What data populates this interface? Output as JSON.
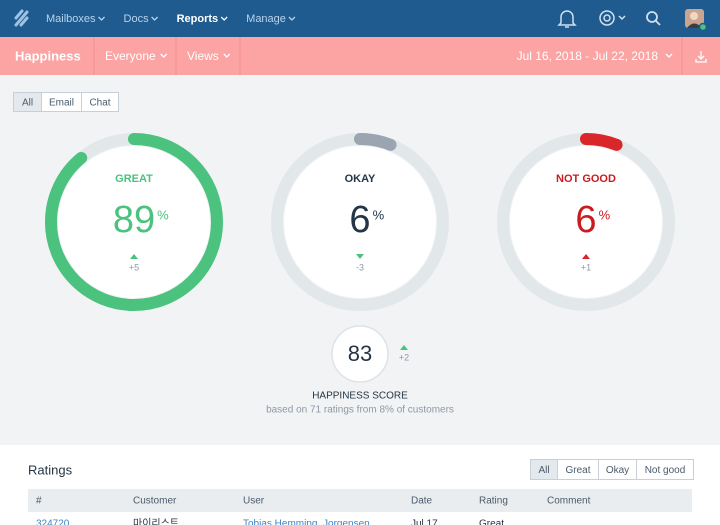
{
  "nav": {
    "items": [
      "Mailboxes",
      "Docs",
      "Reports",
      "Manage"
    ],
    "active": 2
  },
  "subheader": {
    "title": "Happiness",
    "filters": [
      "Everyone",
      "Views"
    ],
    "date_range": "Jul 16, 2018 - Jul 22, 2018"
  },
  "tabs": [
    "All",
    "Email",
    "Chat"
  ],
  "gauges": [
    {
      "label": "GREAT",
      "value": 89,
      "unit": "%",
      "change": "+5",
      "color": "#4bc27d",
      "text_color": "#4bc27d",
      "change_color": "#4bc27d"
    },
    {
      "label": "OKAY",
      "value": 6,
      "unit": "%",
      "change": "-3",
      "color": "#9aa5b1",
      "text_color": "#253545",
      "change_color": "#4bc27d"
    },
    {
      "label": "NOT GOOD",
      "value": 6,
      "unit": "%",
      "change": "+1",
      "color": "#d9262b",
      "text_color": "#c91c20",
      "change_color": "#d9262b"
    }
  ],
  "score": {
    "value": 83,
    "change": "+2",
    "label": "HAPPINESS SCORE",
    "note": "based on 71 ratings from 8% of customers"
  },
  "ratings": {
    "title": "Ratings",
    "filters": [
      "All",
      "Great",
      "Okay",
      "Not good"
    ],
    "columns": [
      "#",
      "Customer",
      "User",
      "Date",
      "Rating",
      "Comment"
    ],
    "rows": [
      [
        "324720",
        "마이리스트",
        "Tobias Hemming, Jorgensen",
        "Jul 17",
        "Great",
        ""
      ]
    ]
  }
}
